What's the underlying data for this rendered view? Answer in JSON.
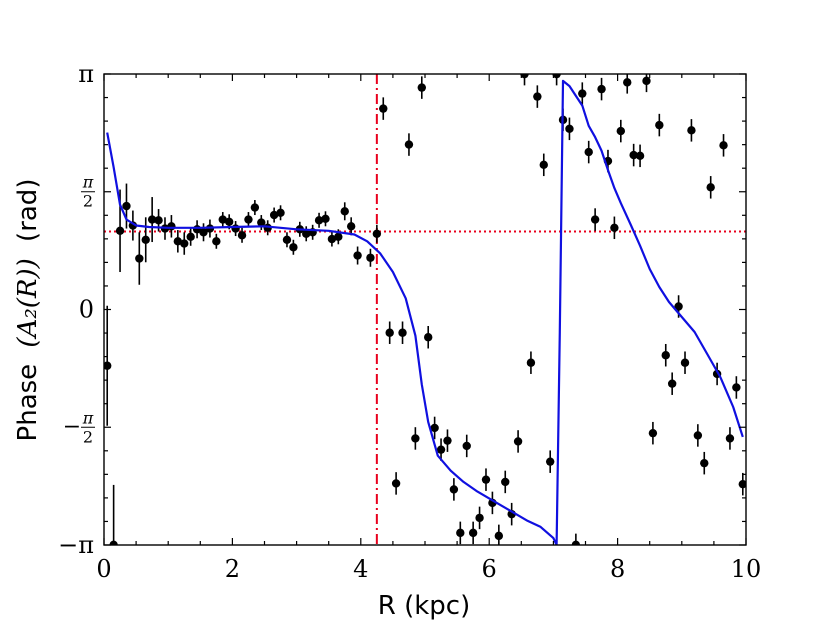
{
  "chart_data": {
    "type": "scatter",
    "xlabel": "R (kpc)",
    "ylabel_prefix": "Phase",
    "ylabel_math": "(A₂(R))",
    "ylabel_suffix": "(rad)",
    "xlim": [
      0,
      10
    ],
    "ylim": [
      -3.14159,
      3.14159
    ],
    "x_ticks": [
      {
        "value": 0,
        "label": "0"
      },
      {
        "value": 2,
        "label": "2"
      },
      {
        "value": 4,
        "label": "4"
      },
      {
        "value": 6,
        "label": "6"
      },
      {
        "value": 8,
        "label": "8"
      },
      {
        "value": 10,
        "label": "10"
      }
    ],
    "y_ticks": [
      {
        "value": -3.14159,
        "label": "−π"
      },
      {
        "value": -1.5708,
        "label": "−π/2",
        "num": "π",
        "den": "2",
        "neg": true
      },
      {
        "value": 0,
        "label": "0"
      },
      {
        "value": 1.5708,
        "label": "π/2",
        "num": "π",
        "den": "2",
        "neg": false
      },
      {
        "value": 3.14159,
        "label": "π"
      }
    ],
    "vline_x": 4.25,
    "hline_y": 1.04,
    "colors": {
      "points": "#000000",
      "model": "#1010e0",
      "vline": "#e8001c",
      "hline": "#e8001c",
      "axis": "#000000"
    },
    "points": [
      [
        0.05,
        -0.75,
        0.8
      ],
      [
        0.15,
        -3.14,
        0.8
      ],
      [
        0.25,
        1.05,
        0.55
      ],
      [
        0.35,
        1.38,
        0.3
      ],
      [
        0.45,
        1.12,
        0.2
      ],
      [
        0.55,
        0.68,
        0.35
      ],
      [
        0.65,
        0.93,
        0.3
      ],
      [
        0.75,
        1.2,
        0.3
      ],
      [
        0.85,
        1.19,
        0.15
      ],
      [
        0.95,
        1.08,
        0.15
      ],
      [
        1.05,
        1.11,
        0.15
      ],
      [
        1.15,
        0.91,
        0.15
      ],
      [
        1.25,
        0.88,
        0.15
      ],
      [
        1.35,
        0.97,
        0.12
      ],
      [
        1.45,
        1.07,
        0.12
      ],
      [
        1.55,
        1.03,
        0.12
      ],
      [
        1.65,
        1.08,
        0.12
      ],
      [
        1.75,
        0.91,
        0.1
      ],
      [
        1.85,
        1.2,
        0.1
      ],
      [
        1.95,
        1.17,
        0.1
      ],
      [
        2.05,
        1.08,
        0.1
      ],
      [
        2.15,
        0.99,
        0.1
      ],
      [
        2.25,
        1.2,
        0.1
      ],
      [
        2.35,
        1.36,
        0.1
      ],
      [
        2.45,
        1.16,
        0.1
      ],
      [
        2.55,
        1.09,
        0.1
      ],
      [
        2.65,
        1.26,
        0.1
      ],
      [
        2.75,
        1.29,
        0.1
      ],
      [
        2.85,
        0.93,
        0.1
      ],
      [
        2.95,
        0.83,
        0.1
      ],
      [
        3.05,
        1.07,
        0.1
      ],
      [
        3.15,
        1.01,
        0.1
      ],
      [
        3.25,
        1.03,
        0.1
      ],
      [
        3.35,
        1.19,
        0.1
      ],
      [
        3.45,
        1.21,
        0.1
      ],
      [
        3.55,
        0.94,
        0.1
      ],
      [
        3.65,
        0.97,
        0.1
      ],
      [
        3.75,
        1.31,
        0.12
      ],
      [
        3.85,
        1.11,
        0.12
      ],
      [
        3.95,
        0.72,
        0.12
      ],
      [
        4.15,
        0.69,
        0.12
      ],
      [
        4.25,
        1.01,
        0.12
      ],
      [
        4.35,
        2.68,
        0.15
      ],
      [
        4.45,
        -0.31,
        0.15
      ],
      [
        4.55,
        -2.32,
        0.15
      ],
      [
        4.65,
        -0.31,
        0.15
      ],
      [
        4.75,
        2.2,
        0.15
      ],
      [
        4.85,
        -1.72,
        0.15
      ],
      [
        4.95,
        2.96,
        0.15
      ],
      [
        5.05,
        -0.37,
        0.15
      ],
      [
        5.15,
        -1.58,
        0.15
      ],
      [
        5.25,
        -1.87,
        0.15
      ],
      [
        5.35,
        -1.75,
        0.15
      ],
      [
        5.45,
        -2.4,
        0.15
      ],
      [
        5.55,
        -2.98,
        0.15
      ],
      [
        5.65,
        -1.82,
        0.15
      ],
      [
        5.75,
        -2.98,
        0.15
      ],
      [
        5.85,
        -2.78,
        0.15
      ],
      [
        5.95,
        -2.27,
        0.15
      ],
      [
        6.05,
        -2.58,
        0.15
      ],
      [
        6.15,
        -3.02,
        0.15
      ],
      [
        6.25,
        -2.3,
        0.15
      ],
      [
        6.35,
        -2.73,
        0.15
      ],
      [
        6.45,
        -1.76,
        0.15
      ],
      [
        6.55,
        3.14,
        0.15
      ],
      [
        6.65,
        -0.71,
        0.15
      ],
      [
        6.75,
        2.84,
        0.15
      ],
      [
        6.85,
        1.93,
        0.15
      ],
      [
        6.95,
        -2.03,
        0.15
      ],
      [
        7.05,
        3.14,
        0.15
      ],
      [
        7.15,
        2.53,
        0.15
      ],
      [
        7.25,
        2.41,
        0.15
      ],
      [
        7.35,
        -3.14,
        0.15
      ],
      [
        7.45,
        2.88,
        0.15
      ],
      [
        7.55,
        2.1,
        0.15
      ],
      [
        7.65,
        1.2,
        0.15
      ],
      [
        7.75,
        2.94,
        0.15
      ],
      [
        7.85,
        1.98,
        0.15
      ],
      [
        7.95,
        1.09,
        0.15
      ],
      [
        8.05,
        2.38,
        0.15
      ],
      [
        8.15,
        3.03,
        0.15
      ],
      [
        8.25,
        2.06,
        0.15
      ],
      [
        8.35,
        2.05,
        0.15
      ],
      [
        8.45,
        3.05,
        0.15
      ],
      [
        8.55,
        -1.65,
        0.15
      ],
      [
        8.65,
        2.46,
        0.15
      ],
      [
        8.75,
        -0.61,
        0.15
      ],
      [
        8.85,
        -0.99,
        0.15
      ],
      [
        8.95,
        0.04,
        0.15
      ],
      [
        9.05,
        -0.71,
        0.15
      ],
      [
        9.15,
        2.39,
        0.15
      ],
      [
        9.25,
        -1.68,
        0.15
      ],
      [
        9.35,
        -2.05,
        0.15
      ],
      [
        9.45,
        1.63,
        0.15
      ],
      [
        9.55,
        -0.86,
        0.15
      ],
      [
        9.65,
        2.19,
        0.15
      ],
      [
        9.75,
        -1.72,
        0.15
      ],
      [
        9.85,
        -1.04,
        0.15
      ],
      [
        9.95,
        -2.33,
        0.15
      ]
    ],
    "model_line": [
      [
        0.05,
        2.36
      ],
      [
        0.15,
        1.9
      ],
      [
        0.25,
        1.4
      ],
      [
        0.35,
        1.2
      ],
      [
        0.5,
        1.12
      ],
      [
        0.7,
        1.1
      ],
      [
        1.0,
        1.09
      ],
      [
        1.5,
        1.09
      ],
      [
        2.0,
        1.1
      ],
      [
        2.5,
        1.11
      ],
      [
        3.0,
        1.07
      ],
      [
        3.5,
        1.05
      ],
      [
        3.9,
        1.0
      ],
      [
        4.1,
        0.91
      ],
      [
        4.3,
        0.75
      ],
      [
        4.5,
        0.5
      ],
      [
        4.7,
        0.15
      ],
      [
        4.85,
        -0.35
      ],
      [
        4.95,
        -1.0
      ],
      [
        5.05,
        -1.5
      ],
      [
        5.2,
        -1.95
      ],
      [
        5.4,
        -2.15
      ],
      [
        5.6,
        -2.3
      ],
      [
        5.8,
        -2.42
      ],
      [
        6.0,
        -2.52
      ],
      [
        6.2,
        -2.62
      ],
      [
        6.4,
        -2.72
      ],
      [
        6.6,
        -2.82
      ],
      [
        6.8,
        -2.9
      ],
      [
        7.0,
        -3.05
      ],
      [
        7.05,
        -3.14
      ],
      [
        7.1,
        -0.3
      ],
      [
        7.15,
        3.05
      ],
      [
        7.25,
        2.98
      ],
      [
        7.35,
        2.85
      ],
      [
        7.45,
        2.72
      ],
      [
        7.55,
        2.45
      ],
      [
        7.65,
        2.3
      ],
      [
        7.75,
        2.12
      ],
      [
        7.85,
        1.86
      ],
      [
        7.95,
        1.62
      ],
      [
        8.05,
        1.42
      ],
      [
        8.2,
        1.14
      ],
      [
        8.35,
        0.85
      ],
      [
        8.5,
        0.54
      ],
      [
        8.65,
        0.3
      ],
      [
        8.8,
        0.1
      ],
      [
        9.0,
        -0.1
      ],
      [
        9.2,
        -0.3
      ],
      [
        9.4,
        -0.6
      ],
      [
        9.6,
        -0.9
      ],
      [
        9.8,
        -1.3
      ],
      [
        9.95,
        -1.7
      ]
    ]
  }
}
